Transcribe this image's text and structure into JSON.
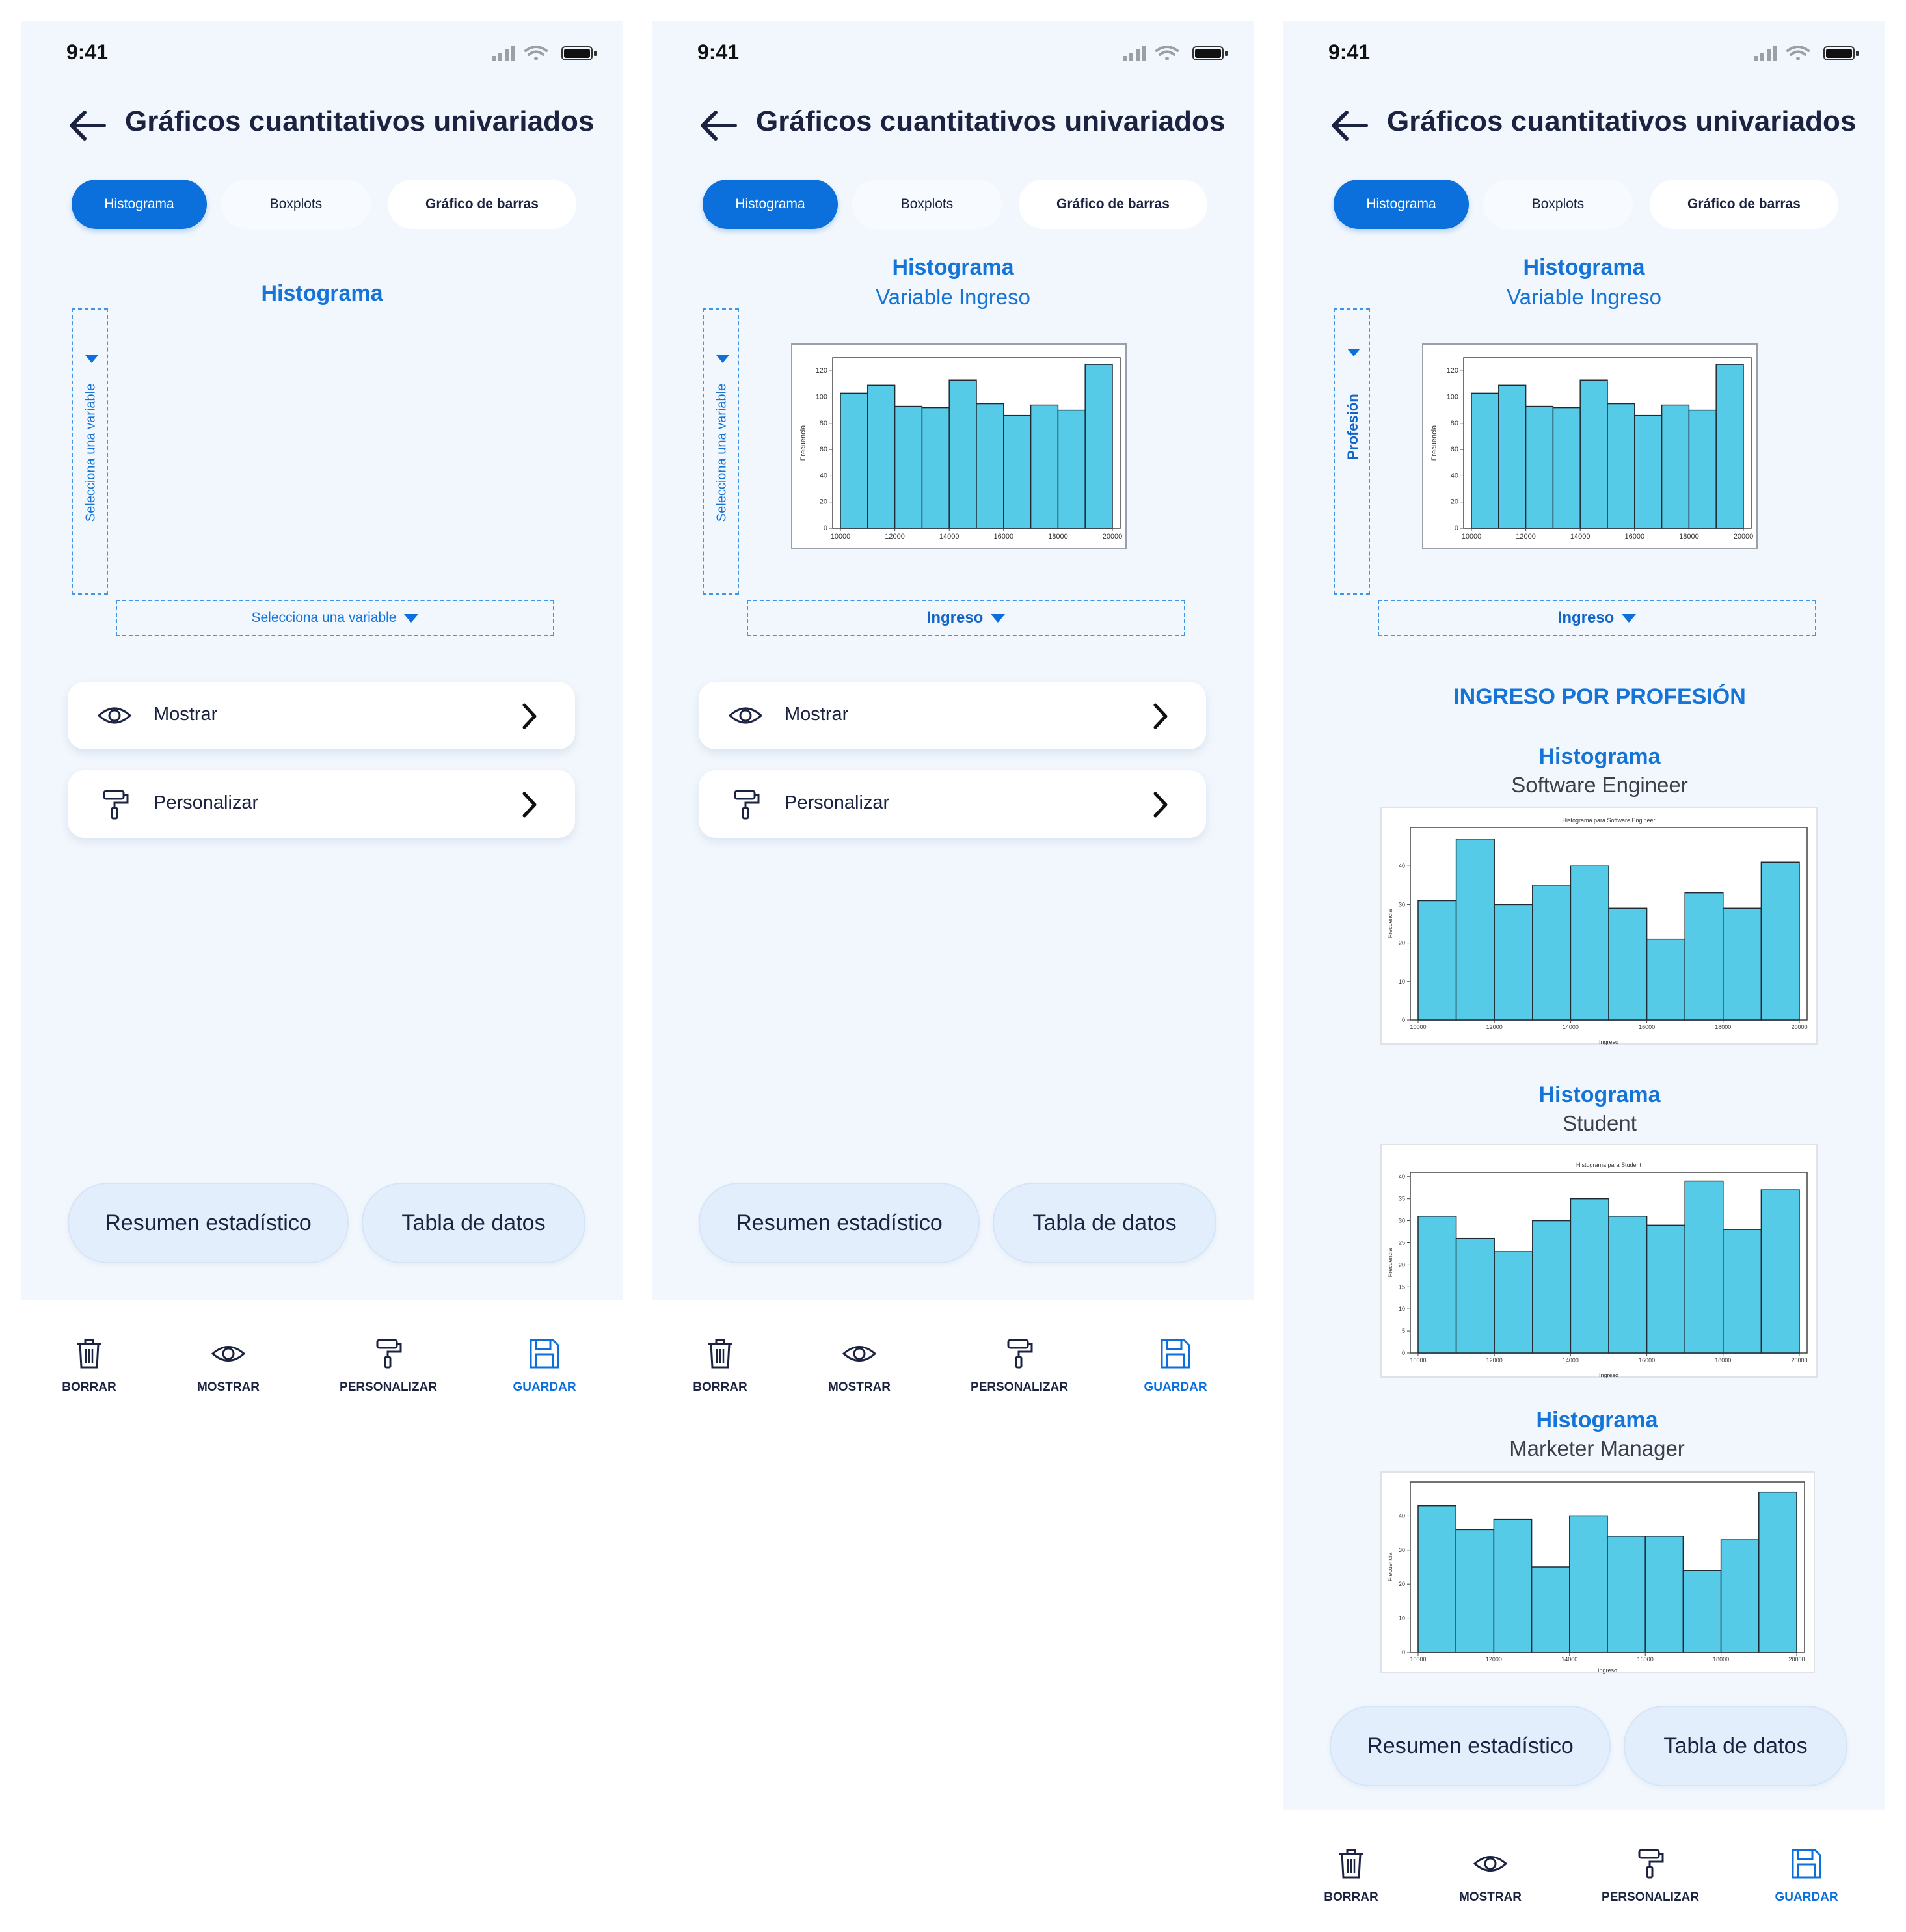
{
  "status": {
    "time": "9:41"
  },
  "header": {
    "title": "Gráficos cuantitativos univariados"
  },
  "tabs": [
    {
      "label": "Histograma"
    },
    {
      "label": "Boxplots"
    },
    {
      "label": "Gráfico de barras"
    }
  ],
  "screens": [
    {
      "heading": "Histograma",
      "y_selector": "Selecciona una variable",
      "x_selector": "Selecciona una variable"
    },
    {
      "heading": "Histograma",
      "subheading": "Variable Ingreso",
      "y_selector": "Selecciona una variable",
      "x_selector": "Ingreso"
    },
    {
      "heading": "Histograma",
      "subheading": "Variable Ingreso",
      "y_selector": "Profesión",
      "x_selector": "Ingreso",
      "group_title": "INGRESO POR PROFESIÓN",
      "groups": [
        {
          "heading": "Histograma",
          "name": "Software Engineer"
        },
        {
          "heading": "Histograma",
          "name": "Student"
        },
        {
          "heading": "Histograma",
          "name": "Marketer Manager"
        }
      ]
    }
  ],
  "menu": {
    "show": "Mostrar",
    "customize": "Personalizar"
  },
  "actions": {
    "summary": "Resumen estadístico",
    "table": "Tabla de datos"
  },
  "nav": {
    "delete": "BORRAR",
    "show": "MOSTRAR",
    "customize": "PERSONALIZAR",
    "save": "GUARDAR"
  },
  "colors": {
    "accent": "#0b6fdc",
    "bar": "#56cbe8",
    "background": "#f2f7fd"
  },
  "chart_data": [
    {
      "type": "bar",
      "title": "",
      "xlabel": "",
      "ylabel": "Frecuencia",
      "x_ticks": [
        "10000",
        "12000",
        "14000",
        "16000",
        "18000",
        "20000"
      ],
      "y_ticks": [
        "0",
        "20",
        "40",
        "60",
        "80",
        "100",
        "120"
      ],
      "xlim": [
        10000,
        20000
      ],
      "ylim": [
        0,
        130
      ],
      "values": [
        103,
        109,
        93,
        92,
        113,
        95,
        86,
        94,
        90,
        125
      ],
      "bins": 10
    },
    {
      "type": "bar",
      "title": "Histograma para Software Engineer",
      "xlabel": "Ingreso",
      "ylabel": "Frecuencia",
      "x_ticks": [
        "10000",
        "12000",
        "14000",
        "16000",
        "18000",
        "20000"
      ],
      "y_ticks": [
        "0",
        "10",
        "20",
        "30",
        "40"
      ],
      "xlim": [
        10000,
        20000
      ],
      "ylim": [
        0,
        50
      ],
      "values": [
        31,
        47,
        30,
        35,
        40,
        29,
        21,
        33,
        29,
        41
      ],
      "bins": 10
    },
    {
      "type": "bar",
      "title": "Histograma para Student",
      "xlabel": "Ingreso",
      "ylabel": "Frecuencia",
      "x_ticks": [
        "10000",
        "12000",
        "14000",
        "16000",
        "18000",
        "20000"
      ],
      "y_ticks": [
        "0",
        "5",
        "10",
        "15",
        "20",
        "25",
        "30",
        "35",
        "40"
      ],
      "xlim": [
        10000,
        20000
      ],
      "ylim": [
        0,
        41
      ],
      "values": [
        31,
        26,
        23,
        30,
        35,
        31,
        29,
        39,
        28,
        37
      ],
      "bins": 10
    },
    {
      "type": "bar",
      "title": "",
      "xlabel": "Ingreso",
      "ylabel": "Frecuencia",
      "x_ticks": [
        "10000",
        "12000",
        "14000",
        "16000",
        "18000",
        "20000"
      ],
      "y_ticks": [
        "0",
        "10",
        "20",
        "30",
        "40"
      ],
      "xlim": [
        10000,
        20000
      ],
      "ylim": [
        0,
        50
      ],
      "values": [
        43,
        36,
        39,
        25,
        40,
        34,
        34,
        24,
        33,
        47
      ],
      "bins": 10
    }
  ]
}
